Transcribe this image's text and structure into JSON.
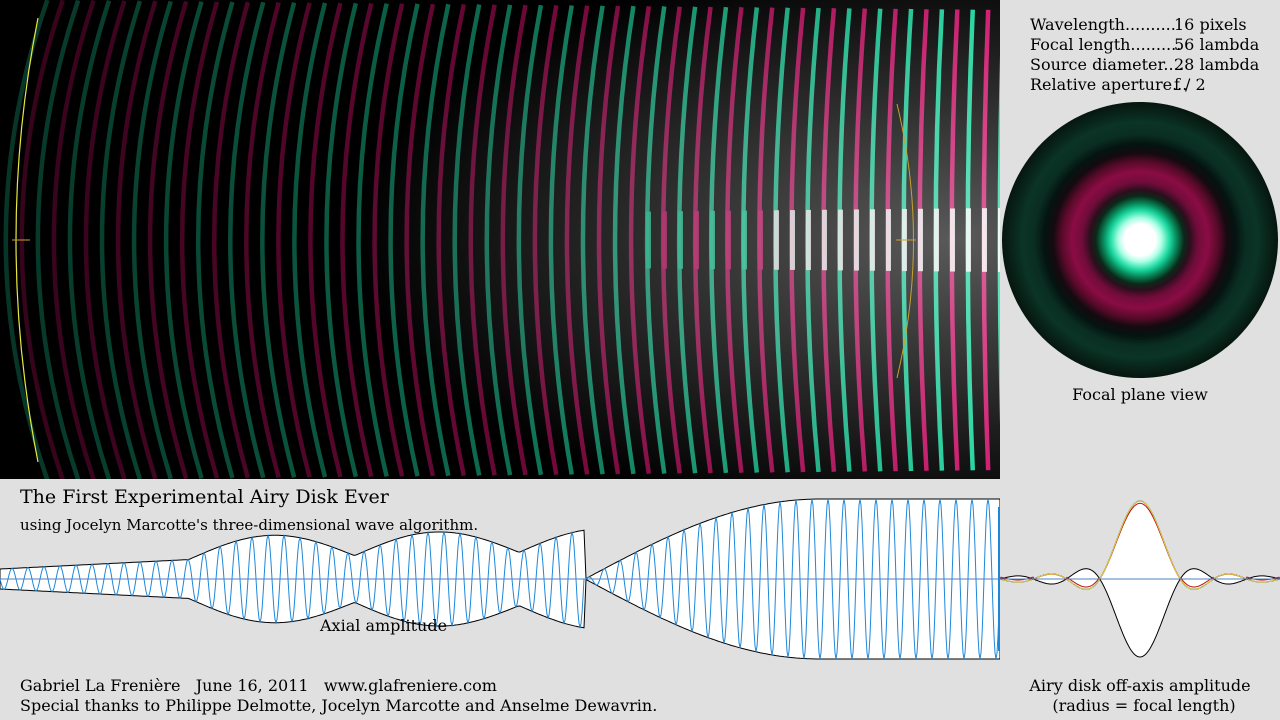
{
  "params": [
    {
      "key": "Wavelength..........",
      "value": "16 pixels"
    },
    {
      "key": "Focal length..........",
      "value": "56 lambda"
    },
    {
      "key": "Source diameter....",
      "value": "28 lambda"
    },
    {
      "key": "Relative aperture...",
      "value": "f / 2"
    }
  ],
  "focal_plane_label": "Focal plane view",
  "title": "The First Experimental Airy Disk Ever",
  "subtitle": "using Jocelyn Marcotte's three-dimensional wave algorithm.",
  "axial_label": "Axial amplitude",
  "credit_line1": "Gabriel La Frenière   June 16, 2011   www.glafreniere.com",
  "credit_line2": "Special thanks to Philippe Delmotte, Jocelyn Marcotte and Anselme Dewavrin.",
  "airy_label_line1": "Airy disk off-axis amplitude",
  "airy_label_line2": "(radius = focal length)",
  "colors": {
    "wave_green": "#1cd8a0",
    "wave_magenta": "#d0106a",
    "mirror_line": "#e8e840",
    "axial_wave": "#1e88d8",
    "airy_red": "#c01010"
  }
}
